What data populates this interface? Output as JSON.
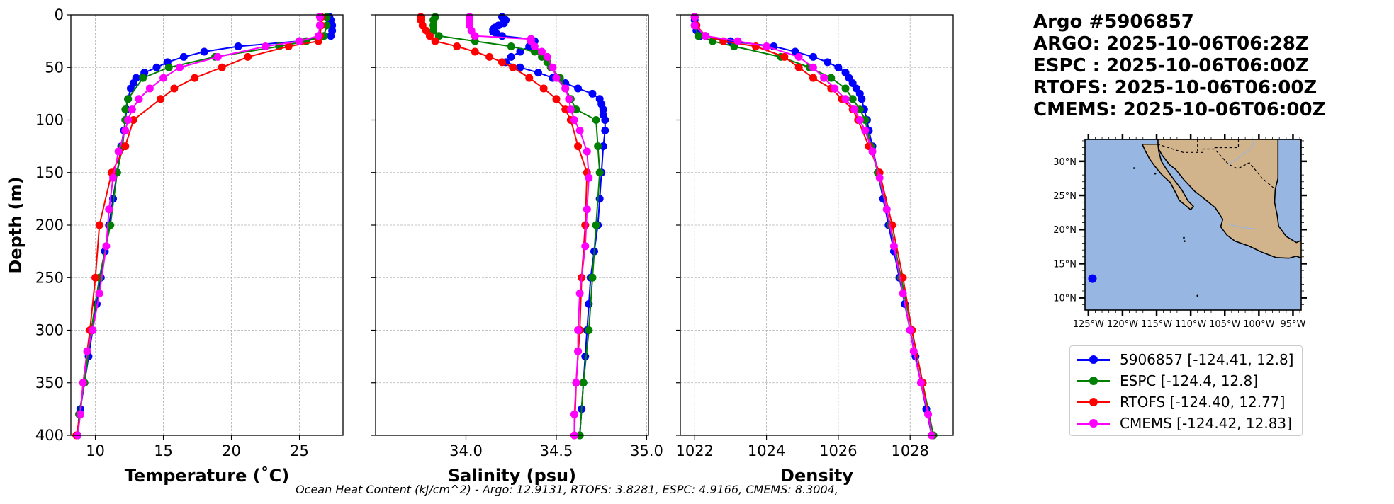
{
  "title_lines": [
    "Argo #5906857",
    "ARGO: 2025-10-06T06:28Z",
    "ESPC : 2025-10-06T06:00Z",
    "RTOFS: 2025-10-06T06:00Z",
    "CMEMS: 2025-10-06T06:00Z"
  ],
  "colors": {
    "argo": "#0000ff",
    "espc": "#008000",
    "rtofs": "#ff0000",
    "cmems": "#ff00ff",
    "ocean": "#97b6e1",
    "land": "#d2b48c"
  },
  "legend": [
    {
      "label": "5906857 [-124.41, 12.8]",
      "color": "#0000ff"
    },
    {
      "label": "ESPC [-124.4, 12.8]",
      "color": "#008000"
    },
    {
      "label": "RTOFS [-124.40, 12.77]",
      "color": "#ff0000"
    },
    {
      "label": "CMEMS [-124.42, 12.83]",
      "color": "#ff00ff"
    }
  ],
  "footnote": "Ocean Heat Content (kJ/cm^2) - Argo: 12.9131,  RTOFS: 3.8281,  ESPC: 4.9166,  CMEMS: 8.3004,",
  "chart_data": [
    {
      "type": "line",
      "xlabel": "Temperature (˚C)",
      "ylabel": "Depth (m)",
      "xlim": [
        8.2,
        28.2
      ],
      "ylim": [
        400,
        0
      ],
      "xticks": [
        10,
        15,
        20,
        25
      ],
      "xtick_labels": [
        "10",
        "15",
        "20",
        "25"
      ],
      "yticks": [
        0,
        50,
        100,
        150,
        200,
        250,
        300,
        350,
        400
      ],
      "ytick_labels": [
        "0",
        "50",
        "100",
        "150",
        "200",
        "250",
        "300",
        "350",
        "400"
      ],
      "grid": true,
      "series": [
        {
          "name": "Argo",
          "color": "#0000ff",
          "depth": [
            2,
            5,
            10,
            15,
            20,
            25,
            30,
            35,
            40,
            45,
            50,
            55,
            60,
            65,
            70,
            80,
            90,
            100,
            110,
            125,
            150,
            175,
            200,
            225,
            250,
            275,
            300,
            325,
            350,
            375,
            400
          ],
          "values": [
            27.2,
            27.3,
            27.4,
            27.4,
            27.3,
            25.0,
            20.5,
            18.0,
            16.5,
            15.3,
            14.5,
            13.6,
            13.0,
            12.8,
            12.6,
            12.4,
            12.3,
            12.2,
            12.1,
            11.9,
            11.6,
            11.3,
            11.0,
            10.7,
            10.4,
            10.1,
            9.8,
            9.5,
            9.2,
            8.9,
            8.7
          ]
        },
        {
          "name": "ESPC",
          "color": "#008000",
          "depth": [
            2,
            10,
            20,
            25,
            30,
            40,
            50,
            60,
            80,
            90,
            100,
            125,
            150,
            200,
            250,
            300,
            350,
            380,
            400
          ],
          "values": [
            27.0,
            27.0,
            26.8,
            25.5,
            23.5,
            18.8,
            15.4,
            13.5,
            12.4,
            12.2,
            12.2,
            12.0,
            11.6,
            11.1,
            10.3,
            9.7,
            9.2,
            8.8,
            8.7
          ]
        },
        {
          "name": "RTOFS",
          "color": "#ff0000",
          "depth": [
            2,
            10,
            20,
            25,
            30,
            40,
            50,
            60,
            70,
            80,
            100,
            125,
            150,
            200,
            250,
            300,
            350,
            380,
            400
          ],
          "values": [
            26.6,
            26.6,
            26.5,
            26.4,
            24.2,
            21.2,
            19.3,
            17.3,
            15.8,
            14.8,
            12.8,
            12.2,
            11.2,
            10.3,
            10.0,
            9.6,
            9.1,
            8.9,
            8.6
          ]
        },
        {
          "name": "CMEMS",
          "color": "#ff00ff",
          "depth": [
            2,
            10,
            20,
            25,
            30,
            40,
            50,
            60,
            70,
            80,
            90,
            100,
            110,
            130,
            155,
            185,
            220,
            265,
            300,
            320,
            350,
            380,
            400
          ],
          "values": [
            26.5,
            26.5,
            26.4,
            25.0,
            22.5,
            19.0,
            16.2,
            15.0,
            14.0,
            13.2,
            12.7,
            12.4,
            12.2,
            11.7,
            11.3,
            11.0,
            10.8,
            10.3,
            9.8,
            9.4,
            9.1,
            8.9,
            8.7
          ]
        }
      ]
    },
    {
      "type": "line",
      "xlabel": "Salinity (psu)",
      "ylabel": "",
      "xlim": [
        33.5,
        35.01
      ],
      "ylim": [
        400,
        0
      ],
      "xticks": [
        34.0,
        34.5,
        35.0
      ],
      "xtick_labels": [
        "34.0",
        "34.5",
        "35.0"
      ],
      "yticks": [
        0,
        50,
        100,
        150,
        200,
        250,
        300,
        350,
        400
      ],
      "grid": true,
      "series": [
        {
          "name": "Argo",
          "color": "#0000ff",
          "depth": [
            2,
            5,
            8,
            10,
            12,
            14,
            16,
            18,
            20,
            23,
            25,
            30,
            35,
            40,
            45,
            50,
            55,
            60,
            65,
            70,
            75,
            80,
            85,
            90,
            95,
            100,
            110,
            125,
            150,
            175,
            200,
            225,
            250,
            275,
            300,
            325,
            350,
            375,
            400
          ],
          "values": [
            34.2,
            34.22,
            34.21,
            34.18,
            34.16,
            34.15,
            34.15,
            34.17,
            34.2,
            34.36,
            34.38,
            34.35,
            34.3,
            34.25,
            34.22,
            34.3,
            34.4,
            34.48,
            34.55,
            34.62,
            34.7,
            34.74,
            34.75,
            34.76,
            34.76,
            34.77,
            34.77,
            34.76,
            34.75,
            34.74,
            34.73,
            34.71,
            34.69,
            34.68,
            34.67,
            34.66,
            34.65,
            34.64,
            34.63
          ]
        },
        {
          "name": "ESPC",
          "color": "#008000",
          "depth": [
            2,
            5,
            10,
            15,
            20,
            25,
            30,
            35,
            40,
            45,
            50,
            60,
            70,
            80,
            90,
            100,
            125,
            150,
            200,
            250,
            300,
            350,
            400
          ],
          "values": [
            33.83,
            33.82,
            33.82,
            33.82,
            33.85,
            34.05,
            34.25,
            34.38,
            34.42,
            34.45,
            34.47,
            34.52,
            34.55,
            34.58,
            34.61,
            34.72,
            34.73,
            34.74,
            34.72,
            34.7,
            34.68,
            34.65,
            34.63
          ]
        },
        {
          "name": "RTOFS",
          "color": "#ff0000",
          "depth": [
            2,
            5,
            10,
            15,
            20,
            25,
            30,
            35,
            40,
            45,
            50,
            60,
            70,
            80,
            90,
            100,
            125,
            150,
            200,
            250,
            300,
            350,
            400
          ],
          "values": [
            33.75,
            33.75,
            33.76,
            33.78,
            33.8,
            33.83,
            33.95,
            34.05,
            34.13,
            34.2,
            34.26,
            34.35,
            34.43,
            34.5,
            34.55,
            34.58,
            34.62,
            34.67,
            34.66,
            34.64,
            34.63,
            34.61,
            34.6
          ]
        },
        {
          "name": "CMEMS",
          "color": "#ff00ff",
          "depth": [
            2,
            5,
            10,
            15,
            20,
            23,
            25,
            30,
            35,
            40,
            50,
            60,
            70,
            80,
            90,
            100,
            110,
            130,
            155,
            185,
            220,
            265,
            300,
            320,
            350,
            380,
            400
          ],
          "values": [
            34.02,
            34.02,
            34.02,
            34.03,
            34.05,
            34.36,
            34.36,
            34.38,
            34.42,
            34.45,
            34.48,
            34.5,
            34.55,
            34.57,
            34.58,
            34.6,
            34.63,
            34.67,
            34.68,
            34.67,
            34.66,
            34.63,
            34.62,
            34.62,
            34.61,
            34.6,
            34.6
          ]
        }
      ]
    },
    {
      "type": "line",
      "xlabel": "Density",
      "ylabel": "",
      "xlim": [
        1021.6,
        1029.2
      ],
      "ylim": [
        400,
        0
      ],
      "xticks": [
        1022,
        1024,
        1026,
        1028
      ],
      "xtick_labels": [
        "1022",
        "1024",
        "1026",
        "1028"
      ],
      "yticks": [
        0,
        50,
        100,
        150,
        200,
        250,
        300,
        350,
        400
      ],
      "grid": true,
      "series": [
        {
          "name": "Argo",
          "color": "#0000ff",
          "depth": [
            2,
            5,
            10,
            15,
            20,
            25,
            30,
            35,
            40,
            45,
            50,
            55,
            60,
            65,
            70,
            75,
            80,
            90,
            100,
            110,
            125,
            150,
            175,
            200,
            225,
            250,
            275,
            300,
            325,
            350,
            375,
            400
          ],
          "values": [
            1022.0,
            1022.0,
            1022.0,
            1022.05,
            1022.15,
            1023.0,
            1024.2,
            1024.8,
            1025.3,
            1025.7,
            1026.0,
            1026.2,
            1026.3,
            1026.4,
            1026.5,
            1026.6,
            1026.65,
            1026.72,
            1026.8,
            1026.85,
            1026.95,
            1027.1,
            1027.25,
            1027.4,
            1027.55,
            1027.7,
            1027.85,
            1028.0,
            1028.15,
            1028.3,
            1028.45,
            1028.6
          ]
        },
        {
          "name": "ESPC",
          "color": "#008000",
          "depth": [
            2,
            10,
            20,
            25,
            30,
            40,
            50,
            60,
            70,
            80,
            90,
            100,
            125,
            150,
            200,
            250,
            300,
            350,
            400
          ],
          "values": [
            1022.0,
            1022.0,
            1022.1,
            1022.5,
            1023.1,
            1024.4,
            1025.2,
            1025.8,
            1026.2,
            1026.4,
            1026.6,
            1026.75,
            1026.9,
            1027.1,
            1027.45,
            1027.75,
            1028.05,
            1028.35,
            1028.65
          ]
        },
        {
          "name": "RTOFS",
          "color": "#ff0000",
          "depth": [
            2,
            10,
            20,
            25,
            30,
            40,
            50,
            60,
            70,
            80,
            90,
            100,
            125,
            150,
            200,
            250,
            300,
            350,
            400
          ],
          "values": [
            1022.0,
            1022.05,
            1022.3,
            1022.8,
            1023.7,
            1024.5,
            1024.9,
            1025.3,
            1025.8,
            1026.1,
            1026.4,
            1026.55,
            1026.85,
            1027.15,
            1027.5,
            1027.8,
            1028.05,
            1028.35,
            1028.6
          ]
        },
        {
          "name": "CMEMS",
          "color": "#ff00ff",
          "depth": [
            2,
            10,
            20,
            25,
            30,
            40,
            50,
            60,
            70,
            80,
            90,
            100,
            110,
            130,
            155,
            185,
            220,
            265,
            300,
            320,
            350,
            380,
            400
          ],
          "values": [
            1022.0,
            1022.0,
            1022.3,
            1023.2,
            1024.0,
            1024.9,
            1025.3,
            1025.6,
            1025.9,
            1026.2,
            1026.45,
            1026.6,
            1026.75,
            1026.95,
            1027.15,
            1027.35,
            1027.55,
            1027.8,
            1028.0,
            1028.1,
            1028.3,
            1028.5,
            1028.6
          ]
        }
      ]
    }
  ],
  "inset_map": {
    "lat_labels": [
      "30°N",
      "25°N",
      "20°N",
      "15°N",
      "10°N"
    ],
    "lat_values": [
      30,
      25,
      20,
      15,
      10
    ],
    "lon_labels": [
      "125°W",
      "120°W",
      "115°W",
      "110°W",
      "105°W",
      "100°W",
      "95°W"
    ],
    "lon_values": [
      -125,
      -120,
      -115,
      -110,
      -105,
      -100,
      -95
    ],
    "lon_range": [
      -125.5,
      -93.8
    ],
    "lat_range": [
      8.2,
      33.2
    ],
    "float_position": {
      "lon": -124.41,
      "lat": 12.8
    }
  }
}
